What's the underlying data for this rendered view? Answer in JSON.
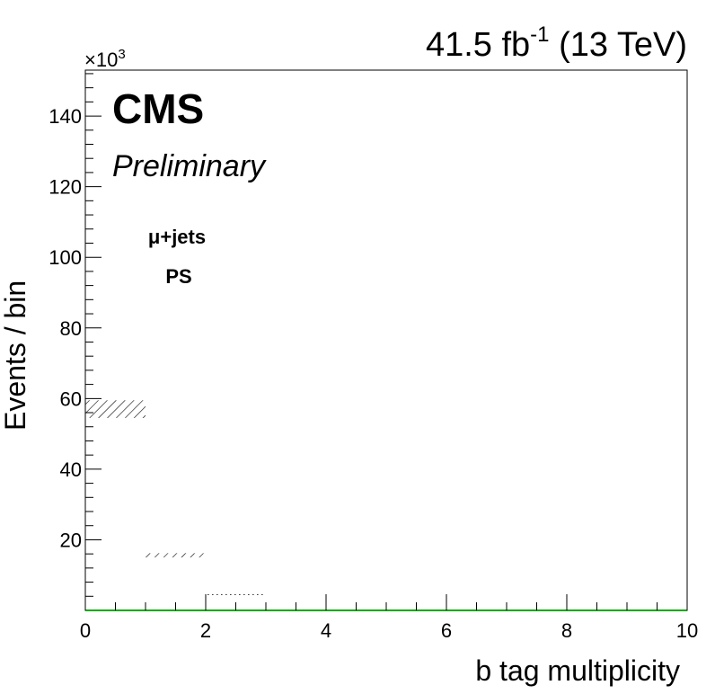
{
  "header": {
    "lumi_value": "41.5 fb",
    "lumi_exp": "-1",
    "energy": "(13 TeV)",
    "cms": "CMS",
    "preliminary": "Preliminary",
    "channel": "μ+jets",
    "sample": "PS",
    "y_multiplier": "×10",
    "y_multiplier_exp": "3"
  },
  "chart_data": {
    "type": "bar",
    "xlabel": "b tag multiplicity",
    "ylabel": "Events / bin",
    "xlim": [
      0,
      10
    ],
    "ylim": [
      0,
      153
    ],
    "x_ticks": [
      0,
      2,
      4,
      6,
      8,
      10
    ],
    "y_ticks": [
      20,
      40,
      60,
      80,
      100,
      120,
      140
    ],
    "uncertainty_bands": [
      {
        "x0": 0,
        "x1": 1,
        "low": 54.5,
        "high": 59.5
      },
      {
        "x0": 1,
        "x1": 2,
        "low": 15.0,
        "high": 16.2
      },
      {
        "x0": 2,
        "x1": 3,
        "low": 4.5,
        "high": 4.9
      }
    ],
    "baseline_color": "#00aa00",
    "hatch_color": "#000000"
  }
}
